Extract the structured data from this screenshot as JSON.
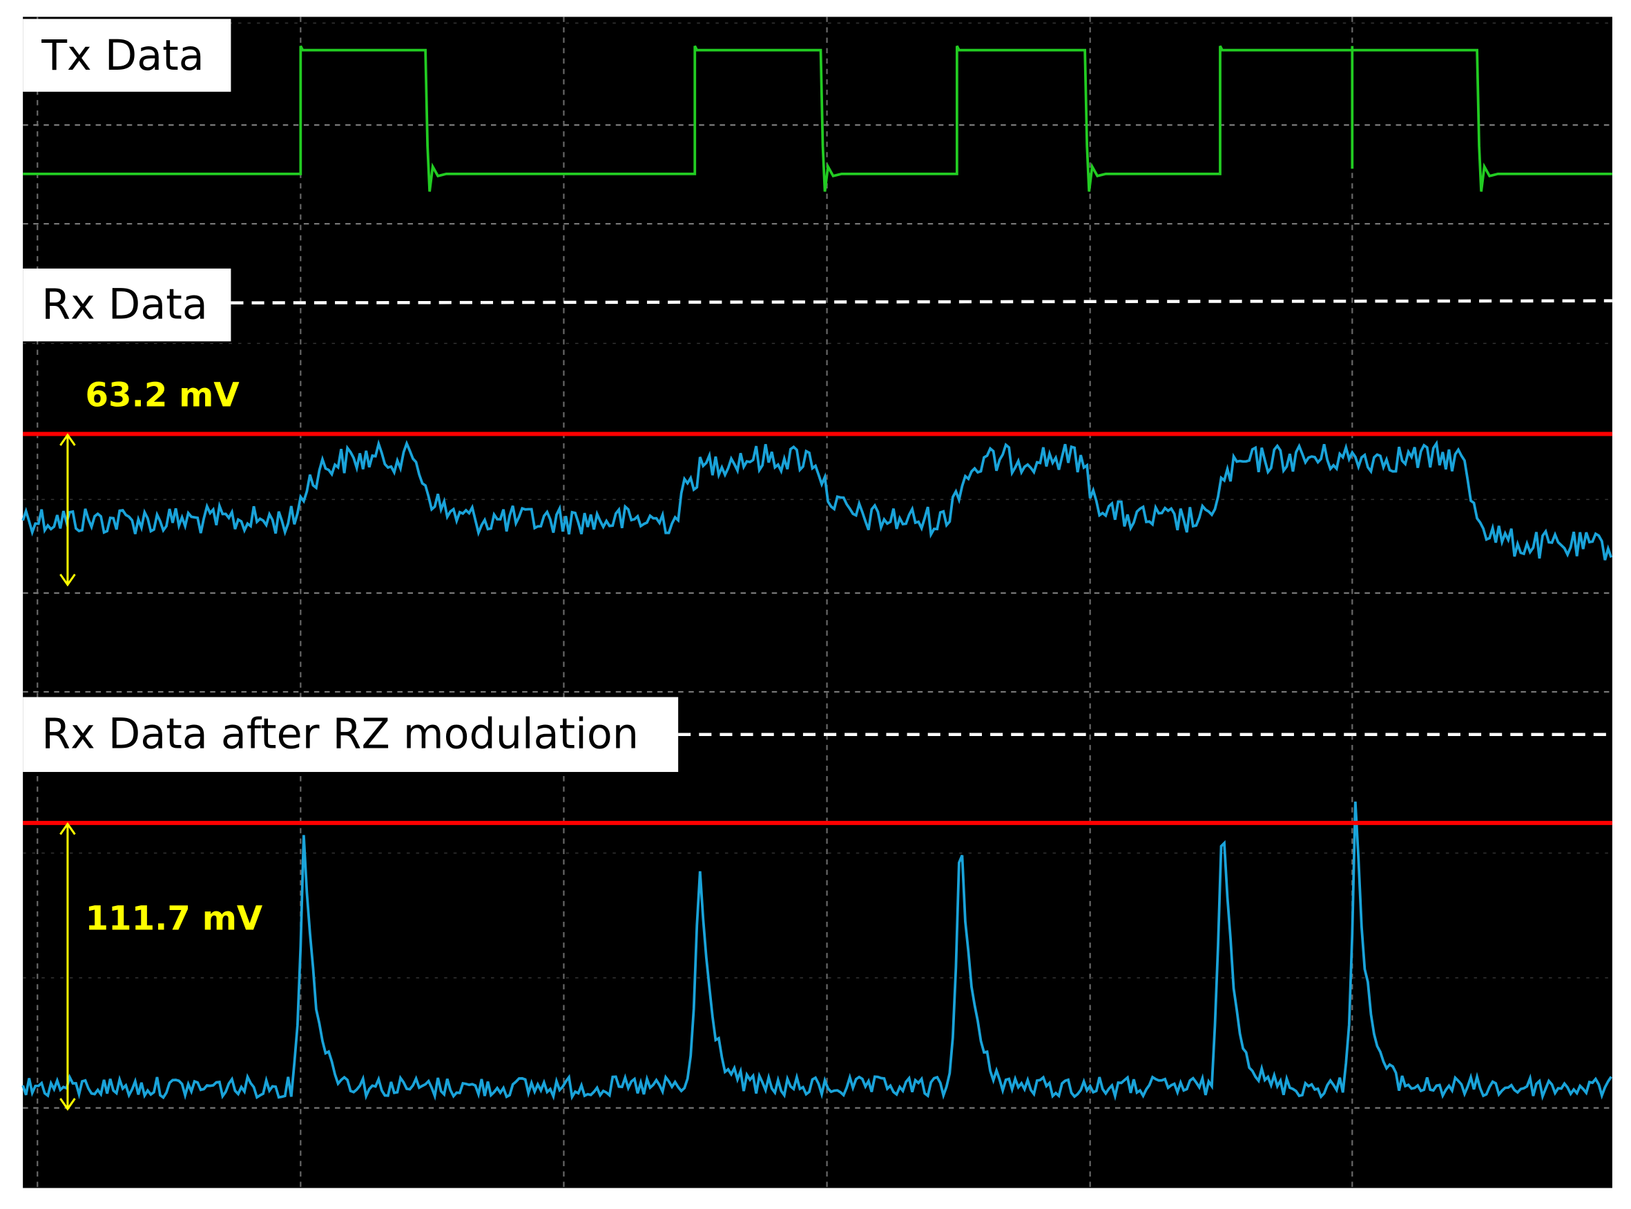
{
  "panels": [
    {
      "label": "Tx Data"
    },
    {
      "label": "Rx Data",
      "amplitude": "63.2 mV"
    },
    {
      "label": "Rx Data after RZ modulation",
      "amplitude": "111.7 mV"
    }
  ]
}
